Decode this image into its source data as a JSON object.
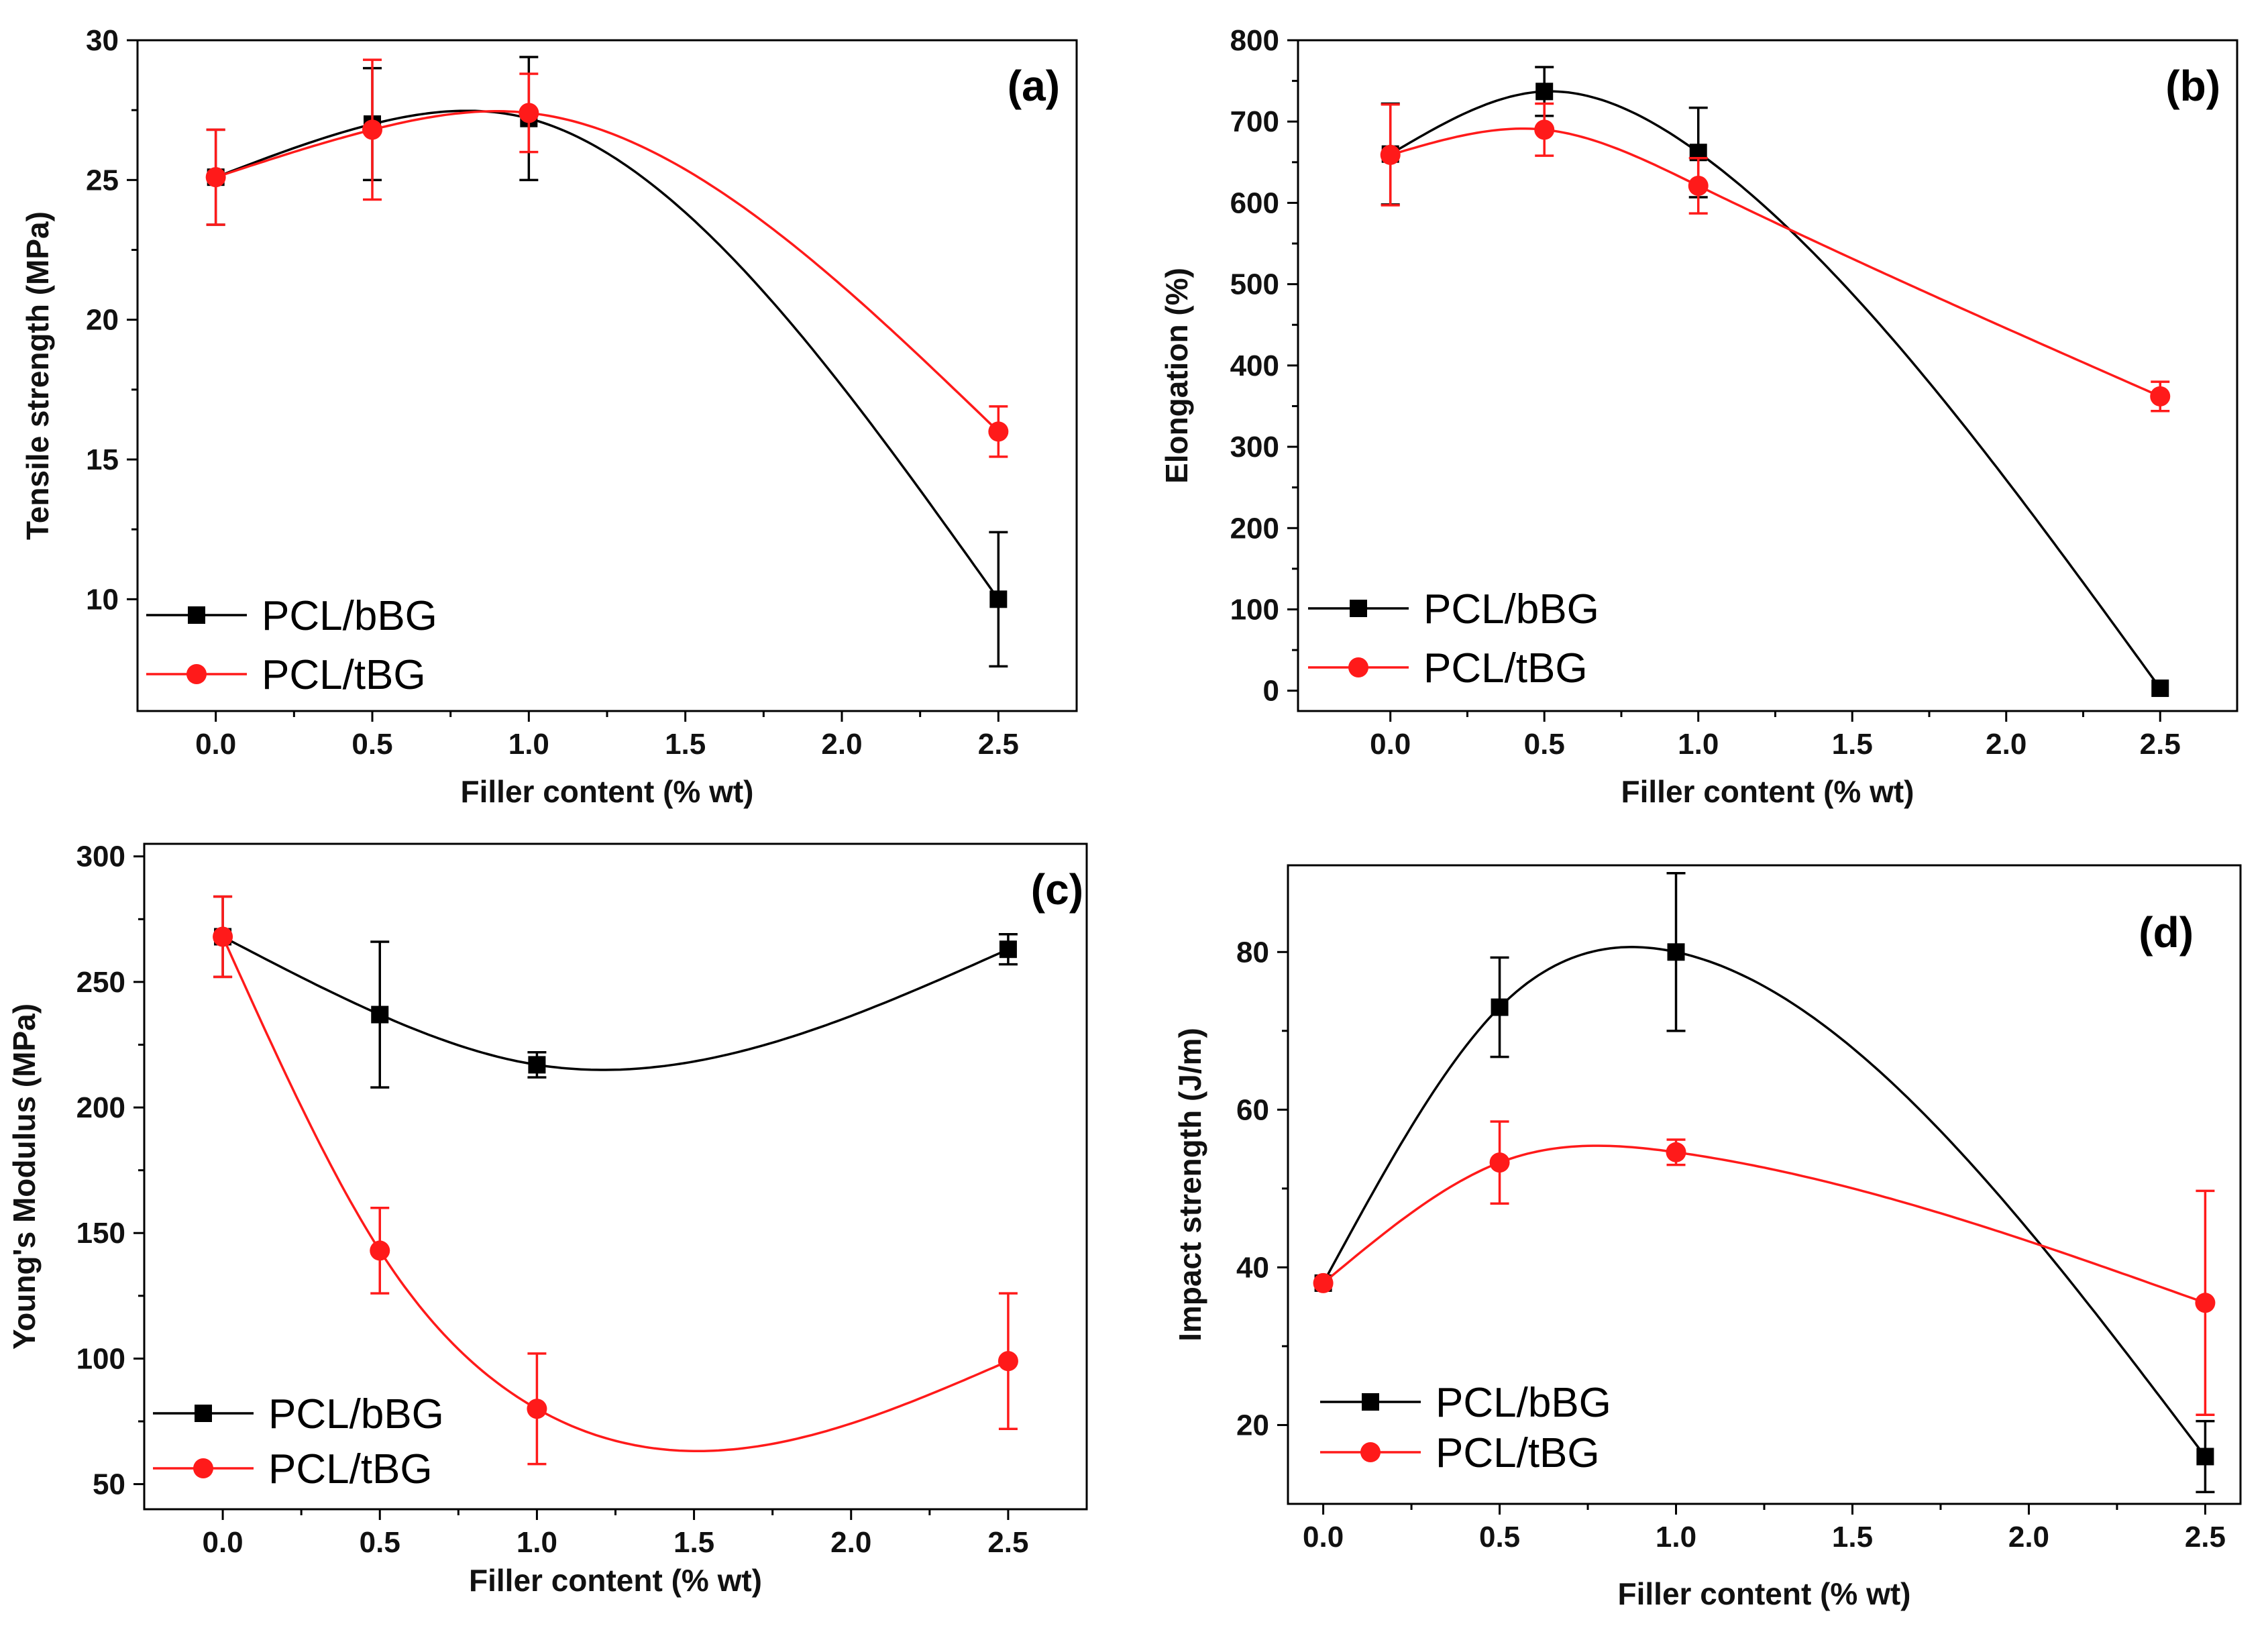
{
  "figure": {
    "legend_labels": [
      "PCL/bBG",
      "PCL/tBG"
    ],
    "colors": {
      "bBG": "#000000",
      "tBG": "#ff1a1a"
    }
  },
  "chart_data": [
    {
      "type": "scatter",
      "panel": "(a)",
      "xlabel": "Filler content (% wt)",
      "ylabel": "Tensile strength (MPa)",
      "xlim": [
        -0.25,
        2.75
      ],
      "ylim": [
        6.0,
        30.0
      ],
      "xticks": [
        0.0,
        0.5,
        1.0,
        1.5,
        2.0,
        2.5
      ],
      "xtick_labels": [
        "0.0",
        "0.5",
        "1.0",
        "1.5",
        "2.0",
        "2.5"
      ],
      "yticks": [
        10,
        15,
        20,
        25,
        30
      ],
      "ytick_labels": [
        "10",
        "15",
        "20",
        "25",
        "30"
      ],
      "legend_position": "bottom-left",
      "series": [
        {
          "name": "PCL/bBG",
          "marker": "square",
          "x": [
            0,
            0.5,
            1.0,
            2.5
          ],
          "y": [
            25.1,
            27.0,
            27.2,
            10.0
          ],
          "err": [
            1.7,
            2.0,
            2.2,
            2.4
          ]
        },
        {
          "name": "PCL/tBG",
          "marker": "circle",
          "x": [
            0,
            0.5,
            1.0,
            2.5
          ],
          "y": [
            25.1,
            26.8,
            27.4,
            16.0
          ],
          "err": [
            1.7,
            2.5,
            1.4,
            0.9
          ]
        }
      ]
    },
    {
      "type": "scatter",
      "panel": "(b)",
      "xlabel": "Filler content (% wt)",
      "ylabel": "Elongation (%)",
      "xlim": [
        -0.3,
        2.75
      ],
      "ylim": [
        -25,
        800
      ],
      "xticks": [
        0.0,
        0.5,
        1.0,
        1.5,
        2.0,
        2.5
      ],
      "xtick_labels": [
        "0.0",
        "0.5",
        "1.0",
        "1.5",
        "2.0",
        "2.5"
      ],
      "yticks": [
        0,
        100,
        200,
        300,
        400,
        500,
        600,
        700,
        800
      ],
      "ytick_labels": [
        "0",
        "100",
        "200",
        "300",
        "400",
        "500",
        "600",
        "700",
        "800"
      ],
      "legend_position": "bottom-left",
      "series": [
        {
          "name": "PCL/bBG",
          "marker": "square",
          "x": [
            0,
            0.5,
            1.0,
            2.5
          ],
          "y": [
            660,
            737,
            662,
            3
          ],
          "err": [
            62,
            30,
            55,
            0
          ]
        },
        {
          "name": "PCL/tBG",
          "marker": "circle",
          "x": [
            0,
            0.5,
            1.0,
            2.5
          ],
          "y": [
            659,
            690,
            621,
            362
          ],
          "err": [
            62,
            32,
            34,
            18
          ]
        }
      ]
    },
    {
      "type": "scatter",
      "panel": "(c)",
      "xlabel": "Filler content (% wt)",
      "ylabel": "Young's Modulus (MPa)",
      "xlim": [
        -0.25,
        2.75
      ],
      "ylim": [
        40,
        305
      ],
      "xticks": [
        0.0,
        0.5,
        1.0,
        1.5,
        2.0,
        2.5
      ],
      "xtick_labels": [
        "0.0",
        "0.5",
        "1.0",
        "1.5",
        "2.0",
        "2.5"
      ],
      "yticks": [
        50,
        100,
        150,
        200,
        250,
        300
      ],
      "ytick_labels": [
        "50",
        "100",
        "150",
        "200",
        "250",
        "300"
      ],
      "legend_position": "bottom-left",
      "series": [
        {
          "name": "PCL/bBG",
          "marker": "square",
          "x": [
            0,
            0.5,
            1.0,
            2.5
          ],
          "y": [
            268,
            237,
            217,
            263
          ],
          "err": [
            16,
            29,
            5,
            6
          ]
        },
        {
          "name": "PCL/tBG",
          "marker": "circle",
          "x": [
            0,
            0.5,
            1.0,
            2.5
          ],
          "y": [
            268,
            143,
            80,
            99
          ],
          "err": [
            16,
            17,
            22,
            27
          ]
        }
      ]
    },
    {
      "type": "scatter",
      "panel": "(d)",
      "xlabel": "Filler content (% wt)",
      "ylabel": "Impact strength (J/m)",
      "xlim": [
        -0.1,
        2.6
      ],
      "ylim": [
        10,
        91
      ],
      "xticks": [
        0.0,
        0.5,
        1.0,
        1.5,
        2.0,
        2.5
      ],
      "xtick_labels": [
        "0.0",
        "0.5",
        "1.0",
        "1.5",
        "2.0",
        "2.5"
      ],
      "yticks": [
        20,
        40,
        60,
        80
      ],
      "ytick_labels": [
        "20",
        "40",
        "60",
        "80"
      ],
      "legend_position": "bottom-left",
      "series": [
        {
          "name": "PCL/bBG",
          "marker": "square",
          "x": [
            0,
            0.5,
            1.0,
            2.5
          ],
          "y": [
            38,
            73,
            80,
            16
          ],
          "err": [
            0,
            6.3,
            10,
            4.5
          ]
        },
        {
          "name": "PCL/tBG",
          "marker": "circle",
          "x": [
            0,
            0.5,
            1.0,
            2.5
          ],
          "y": [
            38,
            53.3,
            54.6,
            35.5
          ],
          "err": [
            0,
            5.2,
            1.6,
            14.2
          ]
        }
      ]
    }
  ]
}
